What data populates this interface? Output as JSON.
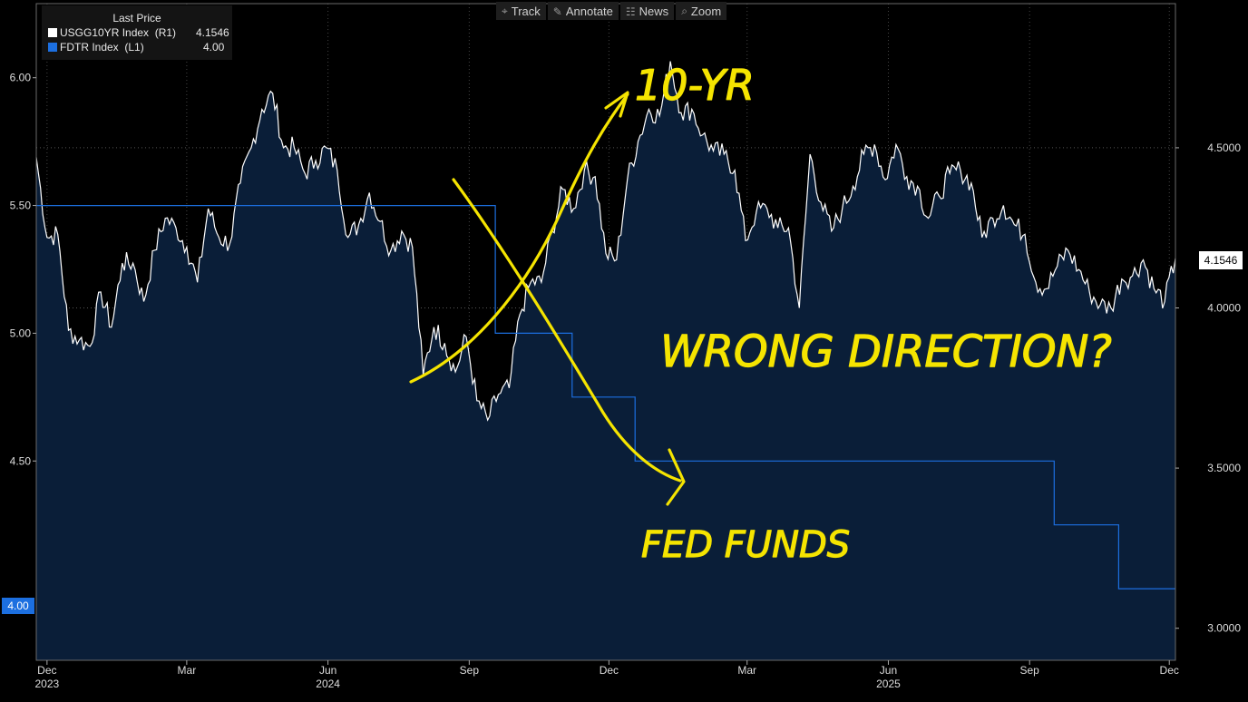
{
  "legend": {
    "header": "Last Price",
    "series": [
      {
        "name": "USGG10YR Index  (R1)",
        "value": "4.1546",
        "color": "#ffffff"
      },
      {
        "name": "FDTR Index  (L1)",
        "value": "4.00",
        "color": "#1c6fe0"
      }
    ]
  },
  "toolbar": [
    {
      "label": "Track",
      "icon": "crosshair-icon",
      "glyph": "⌖"
    },
    {
      "label": "Annotate",
      "icon": "pen-icon",
      "glyph": "✎"
    },
    {
      "label": "News",
      "icon": "news-icon",
      "glyph": "☷"
    },
    {
      "label": "Zoom",
      "icon": "magnifier-icon",
      "glyph": "⌕"
    }
  ],
  "last_price_label": "4.1546",
  "fed_funds_label": "4.00",
  "annotations": {
    "tenyr": "10-YR",
    "wrong": "WRONG DIRECTION?",
    "fedfunds": "FED FUNDS"
  },
  "chart_data": {
    "type": "line",
    "colors": {
      "ten_year": "#ffffff",
      "fed_funds": "#1c6fe0",
      "fill": "#0a1e38",
      "annotation": "#f5e400"
    },
    "x_ticks": [
      {
        "label": "Dec",
        "sub": "2023",
        "date": "2023-12-01"
      },
      {
        "label": "Mar",
        "sub": "",
        "date": "2024-03-01"
      },
      {
        "label": "Jun",
        "sub": "2024",
        "date": "2024-06-01"
      },
      {
        "label": "Sep",
        "sub": "",
        "date": "2024-09-01"
      },
      {
        "label": "Dec",
        "sub": "",
        "date": "2024-12-01"
      },
      {
        "label": "Mar",
        "sub": "",
        "date": "2025-03-01"
      },
      {
        "label": "Jun",
        "sub": "2025",
        "date": "2025-06-01"
      },
      {
        "label": "Sep",
        "sub": "",
        "date": "2025-09-01"
      },
      {
        "label": "Dec",
        "sub": "",
        "date": "2025-12-01"
      }
    ],
    "left_axis": {
      "ylim": [
        3.72,
        6.29
      ],
      "ticks": [
        "4.50",
        "5.00",
        "5.50",
        "6.00"
      ]
    },
    "right_axis": {
      "ylim": [
        2.9,
        4.95
      ],
      "ticks": [
        "3.0000",
        "3.5000",
        "4.0000",
        "4.5000"
      ]
    },
    "series": [
      {
        "name": "USGG10YR Index",
        "axis": "right",
        "points": [
          [
            "2023-11-24",
            4.47
          ],
          [
            "2023-12-01",
            4.22
          ],
          [
            "2023-12-08",
            4.23
          ],
          [
            "2023-12-15",
            3.93
          ],
          [
            "2023-12-22",
            3.9
          ],
          [
            "2023-12-29",
            3.88
          ],
          [
            "2024-01-05",
            4.05
          ],
          [
            "2024-01-12",
            3.94
          ],
          [
            "2024-01-19",
            4.14
          ],
          [
            "2024-01-26",
            4.14
          ],
          [
            "2024-02-02",
            4.02
          ],
          [
            "2024-02-09",
            4.18
          ],
          [
            "2024-02-16",
            4.28
          ],
          [
            "2024-02-23",
            4.25
          ],
          [
            "2024-03-01",
            4.19
          ],
          [
            "2024-03-08",
            4.08
          ],
          [
            "2024-03-15",
            4.31
          ],
          [
            "2024-03-22",
            4.22
          ],
          [
            "2024-03-29",
            4.2
          ],
          [
            "2024-04-05",
            4.39
          ],
          [
            "2024-04-12",
            4.5
          ],
          [
            "2024-04-19",
            4.62
          ],
          [
            "2024-04-26",
            4.67
          ],
          [
            "2024-05-03",
            4.5
          ],
          [
            "2024-05-10",
            4.5
          ],
          [
            "2024-05-17",
            4.42
          ],
          [
            "2024-05-24",
            4.46
          ],
          [
            "2024-05-31",
            4.5
          ],
          [
            "2024-06-07",
            4.43
          ],
          [
            "2024-06-14",
            4.22
          ],
          [
            "2024-06-21",
            4.26
          ],
          [
            "2024-06-28",
            4.36
          ],
          [
            "2024-07-05",
            4.27
          ],
          [
            "2024-07-12",
            4.18
          ],
          [
            "2024-07-19",
            4.24
          ],
          [
            "2024-07-26",
            4.19
          ],
          [
            "2024-08-02",
            3.79
          ],
          [
            "2024-08-09",
            3.94
          ],
          [
            "2024-08-16",
            3.89
          ],
          [
            "2024-08-23",
            3.8
          ],
          [
            "2024-08-30",
            3.91
          ],
          [
            "2024-09-06",
            3.71
          ],
          [
            "2024-09-13",
            3.65
          ],
          [
            "2024-09-20",
            3.73
          ],
          [
            "2024-09-27",
            3.75
          ],
          [
            "2024-10-04",
            3.98
          ],
          [
            "2024-10-11",
            4.08
          ],
          [
            "2024-10-18",
            4.08
          ],
          [
            "2024-10-25",
            4.24
          ],
          [
            "2024-11-01",
            4.37
          ],
          [
            "2024-11-08",
            4.31
          ],
          [
            "2024-11-15",
            4.43
          ],
          [
            "2024-11-22",
            4.41
          ],
          [
            "2024-11-29",
            4.17
          ],
          [
            "2024-12-06",
            4.15
          ],
          [
            "2024-12-13",
            4.4
          ],
          [
            "2024-12-20",
            4.52
          ],
          [
            "2024-12-27",
            4.62
          ],
          [
            "2025-01-03",
            4.6
          ],
          [
            "2025-01-10",
            4.77
          ],
          [
            "2025-01-17",
            4.61
          ],
          [
            "2025-01-24",
            4.62
          ],
          [
            "2025-01-31",
            4.54
          ],
          [
            "2025-02-07",
            4.49
          ],
          [
            "2025-02-14",
            4.48
          ],
          [
            "2025-02-21",
            4.43
          ],
          [
            "2025-02-28",
            4.21
          ],
          [
            "2025-03-07",
            4.3
          ],
          [
            "2025-03-14",
            4.31
          ],
          [
            "2025-03-21",
            4.25
          ],
          [
            "2025-03-28",
            4.25
          ],
          [
            "2025-04-04",
            4.0
          ],
          [
            "2025-04-11",
            4.48
          ],
          [
            "2025-04-18",
            4.33
          ],
          [
            "2025-04-25",
            4.24
          ],
          [
            "2025-05-02",
            4.31
          ],
          [
            "2025-05-09",
            4.38
          ],
          [
            "2025-05-16",
            4.48
          ],
          [
            "2025-05-23",
            4.51
          ],
          [
            "2025-05-30",
            4.4
          ],
          [
            "2025-06-06",
            4.51
          ],
          [
            "2025-06-13",
            4.41
          ],
          [
            "2025-06-20",
            4.38
          ],
          [
            "2025-06-27",
            4.28
          ],
          [
            "2025-07-04",
            4.35
          ],
          [
            "2025-07-11",
            4.42
          ],
          [
            "2025-07-18",
            4.43
          ],
          [
            "2025-07-25",
            4.39
          ],
          [
            "2025-08-01",
            4.22
          ],
          [
            "2025-08-08",
            4.28
          ],
          [
            "2025-08-15",
            4.32
          ],
          [
            "2025-08-22",
            4.26
          ],
          [
            "2025-08-29",
            4.23
          ],
          [
            "2025-09-05",
            4.08
          ],
          [
            "2025-09-12",
            4.06
          ],
          [
            "2025-09-19",
            4.13
          ],
          [
            "2025-09-26",
            4.18
          ],
          [
            "2025-10-03",
            4.12
          ],
          [
            "2025-10-10",
            4.05
          ],
          [
            "2025-10-17",
            4.01
          ],
          [
            "2025-10-24",
            4.0
          ],
          [
            "2025-10-31",
            4.09
          ],
          [
            "2025-11-07",
            4.1
          ],
          [
            "2025-11-14",
            4.15
          ],
          [
            "2025-11-21",
            4.06
          ],
          [
            "2025-11-28",
            4.02
          ],
          [
            "2025-12-05",
            4.1546
          ]
        ]
      },
      {
        "name": "FDTR Index",
        "axis": "left",
        "step": true,
        "points": [
          [
            "2023-11-24",
            5.5
          ],
          [
            "2024-09-18",
            5.5
          ],
          [
            "2024-09-18",
            5.0
          ],
          [
            "2024-11-07",
            5.0
          ],
          [
            "2024-11-07",
            4.75
          ],
          [
            "2024-12-18",
            4.75
          ],
          [
            "2024-12-18",
            4.5
          ],
          [
            "2025-09-17",
            4.5
          ],
          [
            "2025-09-17",
            4.25
          ],
          [
            "2025-10-29",
            4.25
          ],
          [
            "2025-10-29",
            4.0
          ],
          [
            "2025-12-05",
            4.0
          ]
        ]
      }
    ]
  }
}
